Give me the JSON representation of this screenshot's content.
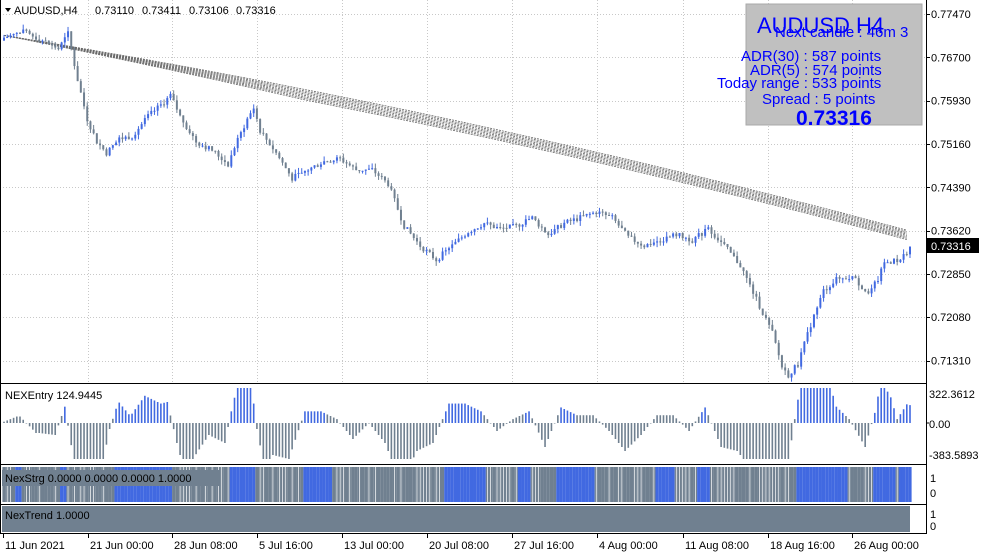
{
  "chart": {
    "symbol_header": "AUDUSD,H4",
    "ohlc": [
      "0.73110",
      "0.73411",
      "0.73106",
      "0.73316"
    ],
    "price_labels": [
      "0.77470",
      "0.76700",
      "0.75930",
      "0.75160",
      "0.74390",
      "0.73620",
      "0.72850",
      "0.72080",
      "0.71310"
    ],
    "current_price": "0.73316",
    "colors": {
      "bull": "#4169e1",
      "bear": "#708090",
      "price_tag_bg": "#000000",
      "info_box_bg": "#c0c0c0",
      "info_text": "#0000ff"
    }
  },
  "info_box": {
    "title": "AUDUSD H4",
    "next_candle": "Next candle : 46m 3",
    "adr30": "ADR(30) : 587 points",
    "adr5": "ADR(5) : 574 points",
    "today_range": "Today range : 533 points",
    "spread": "Spread : 5 points",
    "price": "0.73316"
  },
  "panes": {
    "entry": {
      "label": "NEXEntry 124.9445",
      "levels": [
        "322.3612",
        "0.00",
        "-383.5893"
      ]
    },
    "strg": {
      "label": "NexStrg 0.0000 0.0000 0.0000 1.0000",
      "levels": [
        "1",
        "0"
      ]
    },
    "trend": {
      "label": "NexTrend  1.0000",
      "levels": [
        "1",
        "0"
      ]
    }
  },
  "time_labels": [
    "11 Jun 2021",
    "21 Jun 00:00",
    "28 Jun 08:00",
    "5 Jul 16:00",
    "13 Jul 00:00",
    "20 Jul 08:00",
    "27 Jul 16:00",
    "4 Aug 00:00",
    "11 Aug 08:00",
    "18 Aug 16:00",
    "26 Aug 00:00"
  ],
  "chart_data": {
    "type": "candlestick",
    "symbol": "AUDUSD",
    "timeframe": "H4",
    "ylim": [
      0.7095,
      0.7765
    ],
    "close_profile": [
      [
        0,
        0.7705
      ],
      [
        6,
        0.7715
      ],
      [
        12,
        0.77
      ],
      [
        17,
        0.7685
      ],
      [
        20,
        0.7712
      ],
      [
        23,
        0.763
      ],
      [
        26,
        0.756
      ],
      [
        29,
        0.752
      ],
      [
        32,
        0.75
      ],
      [
        36,
        0.7525
      ],
      [
        40,
        0.753
      ],
      [
        45,
        0.7565
      ],
      [
        50,
        0.759
      ],
      [
        52,
        0.7602
      ],
      [
        55,
        0.7565
      ],
      [
        60,
        0.752
      ],
      [
        65,
        0.7505
      ],
      [
        70,
        0.748
      ],
      [
        72,
        0.751
      ],
      [
        76,
        0.756
      ],
      [
        78,
        0.758
      ],
      [
        80,
        0.754
      ],
      [
        85,
        0.75
      ],
      [
        90,
        0.7455
      ],
      [
        95,
        0.747
      ],
      [
        100,
        0.7485
      ],
      [
        105,
        0.749
      ],
      [
        110,
        0.747
      ],
      [
        115,
        0.747
      ],
      [
        120,
        0.7445
      ],
      [
        125,
        0.737
      ],
      [
        130,
        0.7335
      ],
      [
        135,
        0.731
      ],
      [
        140,
        0.7335
      ],
      [
        145,
        0.736
      ],
      [
        150,
        0.7375
      ],
      [
        155,
        0.7365
      ],
      [
        160,
        0.737
      ],
      [
        165,
        0.7385
      ],
      [
        170,
        0.7355
      ],
      [
        175,
        0.7375
      ],
      [
        180,
        0.7385
      ],
      [
        185,
        0.7395
      ],
      [
        190,
        0.7385
      ],
      [
        195,
        0.735
      ],
      [
        200,
        0.7335
      ],
      [
        205,
        0.7345
      ],
      [
        210,
        0.7355
      ],
      [
        215,
        0.7345
      ],
      [
        220,
        0.7365
      ],
      [
        225,
        0.7335
      ],
      [
        230,
        0.73
      ],
      [
        235,
        0.724
      ],
      [
        240,
        0.718
      ],
      [
        243,
        0.712
      ],
      [
        245,
        0.7105
      ],
      [
        248,
        0.7125
      ],
      [
        252,
        0.7195
      ],
      [
        256,
        0.7255
      ],
      [
        260,
        0.7275
      ],
      [
        265,
        0.728
      ],
      [
        270,
        0.725
      ],
      [
        273,
        0.7275
      ],
      [
        275,
        0.7305
      ],
      [
        280,
        0.731
      ],
      [
        283,
        0.7332
      ]
    ],
    "ma_band": {
      "start": 0.771,
      "end": 0.7362
    },
    "entry_histogram_range": [
      -383.5893,
      322.3612
    ],
    "nexentry_value": 124.9445,
    "nexstrg_values": [
      0.0,
      0.0,
      0.0,
      1.0
    ],
    "nextrend_value": 1.0
  }
}
